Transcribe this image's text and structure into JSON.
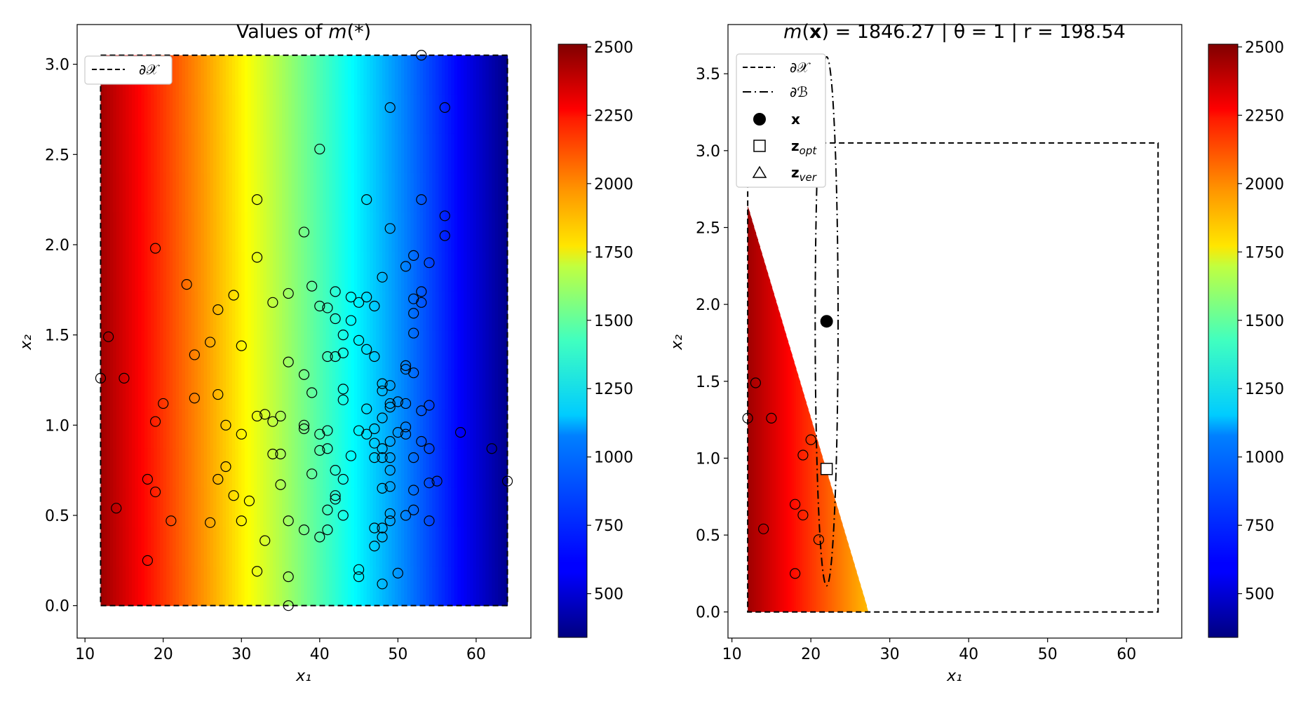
{
  "chart_data": [
    {
      "type": "heatmap",
      "title": "Values of m(*)",
      "xlabel": "x₁",
      "ylabel": "x₂",
      "xlim": [
        9,
        67
      ],
      "ylim": [
        -0.18,
        3.22
      ],
      "xticks": [
        10,
        20,
        30,
        40,
        50,
        60
      ],
      "yticks": [
        0.0,
        0.5,
        1.0,
        1.5,
        2.0,
        2.5,
        3.0
      ],
      "legend": {
        "position": "top-left",
        "entries": [
          {
            "label": "∂𝒳",
            "style": "dashed"
          }
        ]
      },
      "region": {
        "x_min": 12,
        "x_max": 64,
        "y_min": 0,
        "y_max": 3.05
      },
      "colorbar": {
        "min": 340,
        "max": 2510,
        "ticks": [
          500,
          750,
          1000,
          1250,
          1500,
          1750,
          2000,
          2250,
          2500
        ],
        "colormap": "jet"
      },
      "field_model": {
        "x_span": [
          12,
          64
        ],
        "value_at_x_min": 2450,
        "value_at_x_max": 370,
        "x2_shift_per_unit": 4
      },
      "points": [
        [
          12,
          1.26
        ],
        [
          13,
          1.49
        ],
        [
          14,
          0.54
        ],
        [
          15,
          1.26
        ],
        [
          18,
          0.7
        ],
        [
          18,
          0.25
        ],
        [
          19,
          1.98
        ],
        [
          19,
          1.02
        ],
        [
          19,
          0.63
        ],
        [
          20,
          1.12
        ],
        [
          21,
          0.47
        ],
        [
          23,
          1.78
        ],
        [
          24,
          1.39
        ],
        [
          24,
          1.15
        ],
        [
          26,
          1.46
        ],
        [
          26,
          0.46
        ],
        [
          27,
          1.64
        ],
        [
          27,
          1.17
        ],
        [
          27,
          0.7
        ],
        [
          28,
          1.0
        ],
        [
          28,
          0.77
        ],
        [
          29,
          1.72
        ],
        [
          29,
          0.61
        ],
        [
          30,
          1.44
        ],
        [
          30,
          0.95
        ],
        [
          30,
          0.47
        ],
        [
          31,
          0.58
        ],
        [
          32,
          2.25
        ],
        [
          32,
          1.93
        ],
        [
          32,
          1.05
        ],
        [
          32,
          0.19
        ],
        [
          33,
          1.06
        ],
        [
          33,
          0.36
        ],
        [
          34,
          1.68
        ],
        [
          34,
          1.02
        ],
        [
          34,
          0.84
        ],
        [
          35,
          1.05
        ],
        [
          35,
          0.84
        ],
        [
          35,
          0.67
        ],
        [
          36,
          1.73
        ],
        [
          36,
          1.35
        ],
        [
          36,
          0.47
        ],
        [
          36,
          0.16
        ],
        [
          36,
          0.0
        ],
        [
          38,
          2.07
        ],
        [
          38,
          1.28
        ],
        [
          38,
          1.0
        ],
        [
          38,
          0.98
        ],
        [
          38,
          0.42
        ],
        [
          39,
          1.77
        ],
        [
          39,
          1.18
        ],
        [
          39,
          0.73
        ],
        [
          40,
          2.53
        ],
        [
          40,
          1.66
        ],
        [
          40,
          0.95
        ],
        [
          40,
          0.86
        ],
        [
          40,
          0.38
        ],
        [
          41,
          1.65
        ],
        [
          41,
          1.38
        ],
        [
          41,
          0.97
        ],
        [
          41,
          0.87
        ],
        [
          41,
          0.53
        ],
        [
          41,
          0.42
        ],
        [
          42,
          1.74
        ],
        [
          42,
          1.59
        ],
        [
          42,
          1.38
        ],
        [
          42,
          0.75
        ],
        [
          42,
          0.61
        ],
        [
          42,
          0.59
        ],
        [
          43,
          1.4
        ],
        [
          43,
          1.5
        ],
        [
          43,
          1.2
        ],
        [
          43,
          1.14
        ],
        [
          43,
          0.7
        ],
        [
          43,
          0.5
        ],
        [
          44,
          1.71
        ],
        [
          44,
          1.58
        ],
        [
          44,
          0.83
        ],
        [
          45,
          1.68
        ],
        [
          45,
          1.47
        ],
        [
          45,
          0.97
        ],
        [
          45,
          0.2
        ],
        [
          45,
          0.16
        ],
        [
          46,
          2.25
        ],
        [
          46,
          1.71
        ],
        [
          46,
          1.42
        ],
        [
          46,
          1.09
        ],
        [
          46,
          0.95
        ],
        [
          47,
          1.66
        ],
        [
          47,
          1.38
        ],
        [
          47,
          0.98
        ],
        [
          47,
          0.9
        ],
        [
          47,
          0.82
        ],
        [
          47,
          0.43
        ],
        [
          47,
          0.33
        ],
        [
          48,
          1.82
        ],
        [
          48,
          1.23
        ],
        [
          48,
          1.19
        ],
        [
          48,
          1.04
        ],
        [
          48,
          0.87
        ],
        [
          48,
          0.82
        ],
        [
          48,
          0.65
        ],
        [
          48,
          0.43
        ],
        [
          48,
          0.38
        ],
        [
          48,
          0.12
        ],
        [
          49,
          2.76
        ],
        [
          49,
          2.09
        ],
        [
          49,
          1.22
        ],
        [
          49,
          1.12
        ],
        [
          49,
          1.1
        ],
        [
          49,
          0.91
        ],
        [
          49,
          0.82
        ],
        [
          49,
          0.75
        ],
        [
          49,
          0.51
        ],
        [
          49,
          0.47
        ],
        [
          49,
          0.66
        ],
        [
          50,
          1.13
        ],
        [
          50,
          0.96
        ],
        [
          50,
          0.18
        ],
        [
          51,
          1.88
        ],
        [
          51,
          1.33
        ],
        [
          51,
          1.31
        ],
        [
          51,
          1.12
        ],
        [
          51,
          0.99
        ],
        [
          51,
          0.95
        ],
        [
          51,
          0.5
        ],
        [
          52,
          1.94
        ],
        [
          52,
          1.7
        ],
        [
          52,
          1.62
        ],
        [
          52,
          1.51
        ],
        [
          52,
          1.29
        ],
        [
          52,
          0.82
        ],
        [
          52,
          0.64
        ],
        [
          52,
          0.53
        ],
        [
          53,
          3.05
        ],
        [
          53,
          2.25
        ],
        [
          53,
          1.74
        ],
        [
          53,
          1.68
        ],
        [
          53,
          1.08
        ],
        [
          53,
          0.91
        ],
        [
          54,
          1.9
        ],
        [
          54,
          1.11
        ],
        [
          54,
          0.87
        ],
        [
          54,
          0.68
        ],
        [
          54,
          0.47
        ],
        [
          55,
          0.69
        ],
        [
          56,
          2.76
        ],
        [
          56,
          2.16
        ],
        [
          56,
          2.05
        ],
        [
          58,
          0.96
        ],
        [
          62,
          0.87
        ],
        [
          64,
          0.69
        ]
      ]
    },
    {
      "type": "heatmap",
      "title_parts": [
        "m(",
        "x",
        ") = 1846.27 | θ = 1 | r = 198.54"
      ],
      "xlabel": "x₁",
      "ylabel": "x₂",
      "xlim": [
        9.5,
        67
      ],
      "ylim": [
        -0.17,
        3.82
      ],
      "xticks": [
        10,
        20,
        30,
        40,
        50,
        60
      ],
      "yticks": [
        0.0,
        0.5,
        1.0,
        1.5,
        2.0,
        2.5,
        3.0,
        3.5
      ],
      "legend": {
        "position": "top-left",
        "entries": [
          {
            "label": "∂𝒳",
            "style": "dashed"
          },
          {
            "label": "∂ℬ",
            "style": "dashdot"
          },
          {
            "label": "x",
            "style": "filled-circle",
            "bold": true
          },
          {
            "label": "z",
            "sub": "opt",
            "style": "square",
            "bold": true
          },
          {
            "label": "z",
            "sub": "ver",
            "style": "triangle",
            "bold": true
          }
        ]
      },
      "region": {
        "x_min": 12,
        "x_max": 64,
        "y_min": 0,
        "y_max": 3.05
      },
      "feasible_triangle": [
        [
          12,
          0
        ],
        [
          27.3,
          0
        ],
        [
          12,
          2.64
        ]
      ],
      "ellipse": {
        "cx": 22.0,
        "cy": 1.89,
        "rx": 1.45,
        "ry": 1.72
      },
      "x_point": [
        22,
        1.89
      ],
      "z_opt": [
        22,
        0.93
      ],
      "colorbar": {
        "min": 340,
        "max": 2510,
        "ticks": [
          500,
          750,
          1000,
          1250,
          1500,
          1750,
          2000,
          2250,
          2500
        ],
        "colormap": "jet"
      },
      "points": [
        [
          12,
          1.26
        ],
        [
          13,
          1.49
        ],
        [
          14,
          0.54
        ],
        [
          15,
          1.26
        ],
        [
          18,
          0.7
        ],
        [
          18,
          0.25
        ],
        [
          19,
          1.02
        ],
        [
          19,
          0.63
        ],
        [
          20,
          1.12
        ],
        [
          21,
          0.47
        ]
      ]
    }
  ]
}
